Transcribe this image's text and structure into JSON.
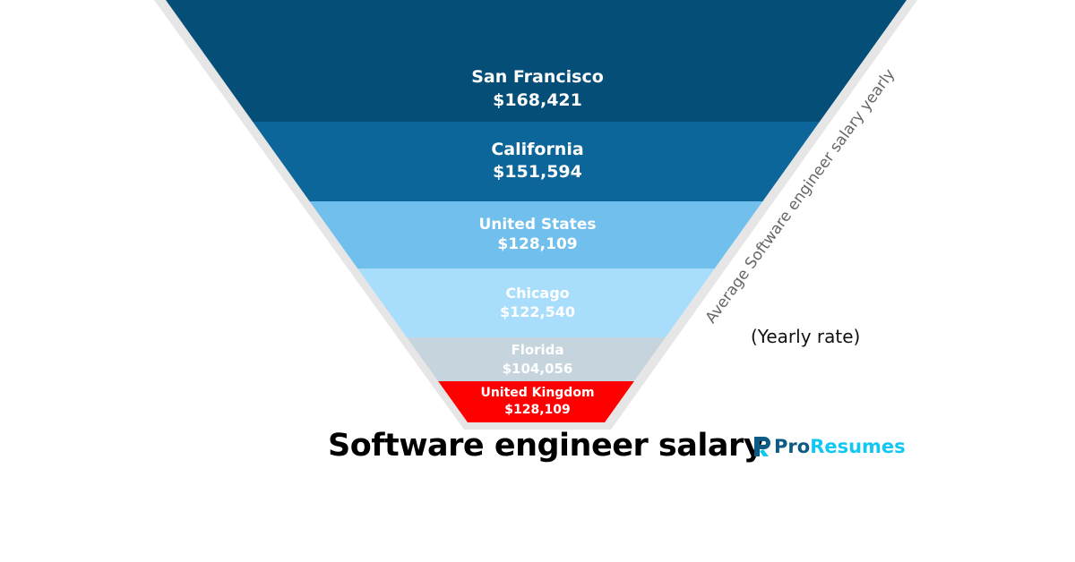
{
  "chart_data": {
    "type": "funnel",
    "title": "Software engineer salary",
    "axis_label": "Average Software engineer salary yearly",
    "note": "(Yearly rate)",
    "stages": [
      {
        "name": "San Francisco",
        "value": 168421,
        "label": "$168,421",
        "color": "#054e77"
      },
      {
        "name": "California",
        "value": 151594,
        "label": "$151,594",
        "color": "#0d6699"
      },
      {
        "name": "United States",
        "value": 128109,
        "label": "$128,109",
        "color": "#70bfec"
      },
      {
        "name": "Chicago",
        "value": 122540,
        "label": "$122,540",
        "color": "#a8ddfb"
      },
      {
        "name": "Florida",
        "value": 104056,
        "label": "$104,056",
        "color": "#c6d4dd"
      },
      {
        "name": "United Kingdom",
        "value": 128109,
        "label": "$128,109",
        "color": "#ff0000"
      }
    ]
  },
  "brand": {
    "part1": "Pro",
    "part2": "Resumes",
    "colors": {
      "dark": "#0d5a84",
      "light": "#12c8f2"
    }
  }
}
